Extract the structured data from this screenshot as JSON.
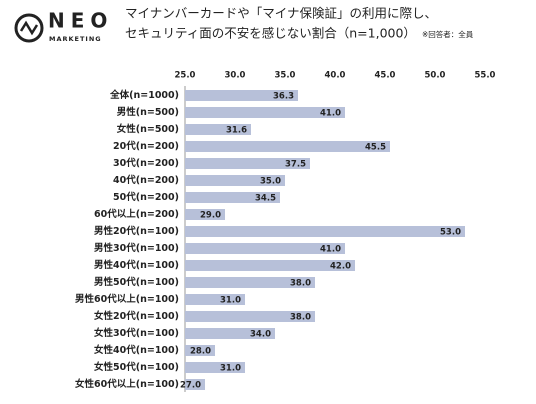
{
  "logo": {
    "name": "NEO",
    "sub": "MARKETING"
  },
  "chart_data": {
    "type": "barh",
    "title": "マイナンバーカードや「マイナ保険証」の利用に際し、",
    "subtitle": "セキュリティ面の不安を感じない割合（n=1,000）",
    "note": "※回答者：全員",
    "categories": [
      "全体(n=1000)",
      "男性(n=500)",
      "女性(n=500)",
      "20代(n=200)",
      "30代(n=200)",
      "40代(n=200)",
      "50代(n=200)",
      "60代以上(n=200)",
      "男性20代(n=100)",
      "男性30代(n=100)",
      "男性40代(n=100)",
      "男性50代(n=100)",
      "男性60代以上(n=100)",
      "女性20代(n=100)",
      "女性30代(n=100)",
      "女性40代(n=100)",
      "女性50代(n=100)",
      "女性60代以上(n=100)"
    ],
    "values": [
      36.3,
      41.0,
      31.6,
      45.5,
      37.5,
      35.0,
      34.5,
      29.0,
      53.0,
      41.0,
      42.0,
      38.0,
      31.0,
      38.0,
      34.0,
      28.0,
      31.0,
      27.0
    ],
    "value_labels": [
      "36.3",
      "41.0",
      "31.6",
      "45.5",
      "37.5",
      "35.0",
      "34.5",
      "29.0",
      "53.0",
      "41.0",
      "42.0",
      "38.0",
      "31.0",
      "38.0",
      "34.0",
      "28.0",
      "31.0",
      "27.0"
    ],
    "color": "#b7c0d9",
    "xlim": [
      25,
      55
    ],
    "xticks": [
      {
        "value": 25,
        "label": "25.0"
      },
      {
        "value": 30,
        "label": "30.0"
      },
      {
        "value": 35,
        "label": "35.0"
      },
      {
        "value": 40,
        "label": "40.0"
      },
      {
        "value": 45,
        "label": "45.0"
      },
      {
        "value": 50,
        "label": "50.0"
      },
      {
        "value": 55,
        "label": "55.0"
      }
    ],
    "grid": false
  }
}
